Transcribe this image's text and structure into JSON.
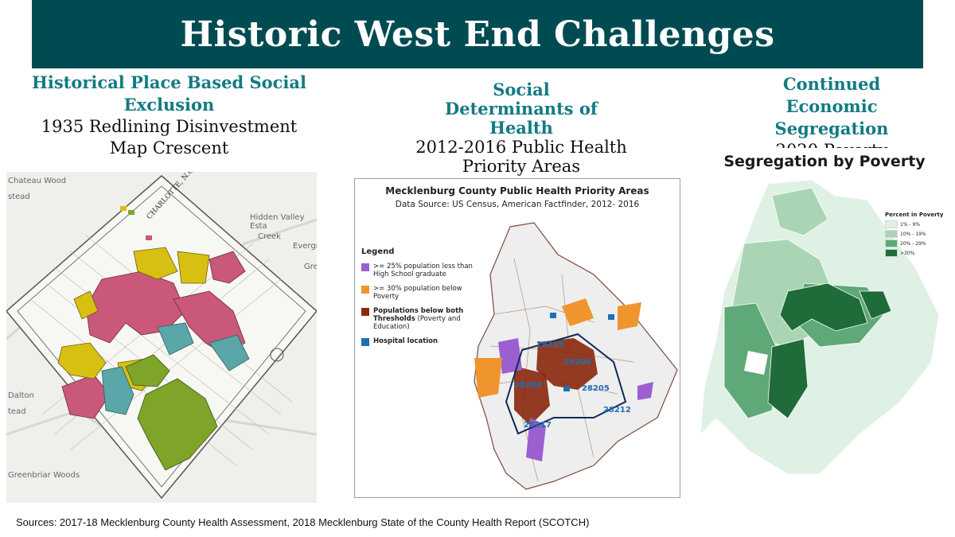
{
  "slide": {
    "title": "Historic West End Challenges",
    "sources": "Sources: 2017-18 Mecklenburg County Health Assessment, 2018 Mecklenburg State of the County Health Report (SCOTCH)"
  },
  "columns": [
    {
      "heading": "Historical Place Based Social Exclusion",
      "subheading": "1935 Redlining Disinvestment Map Crescent"
    },
    {
      "heading": "Social Determinants of Health",
      "subheading": "2012-2016 Public Health Priority Areas"
    },
    {
      "heading": "Continued Economic Segregation",
      "subheading": "2020 Poverty"
    }
  ],
  "redlining_map": {
    "place_labels": [
      "Chateau Wood",
      "stead",
      "Hidden Valley Esta",
      "Creek",
      "Evergr",
      "Gre",
      "Dalton",
      "tead",
      "Greenbriar Woods"
    ],
    "colors": {
      "red": "#c9587a",
      "yellow": "#d8c012",
      "blue": "#5aa6a8",
      "green": "#7ea52a"
    }
  },
  "health_map": {
    "title": "Mecklenburg County Public Health Priority Areas",
    "subtitle": "Data Source: US Census, American Factfinder, 2012- 2016",
    "legend_title": "Legend",
    "legend": [
      {
        "label": ">= 25% population less than High School graduate",
        "color": "#9b5fd0"
      },
      {
        "label": ">= 30% population below Poverty",
        "color": "#f0952e"
      },
      {
        "label_bold": "Populations below both Thresholds",
        "label_rest": " (Poverty and Education)",
        "color": "#8b2a10"
      },
      {
        "label": "Hospital location",
        "color": "#1f6fb2"
      }
    ],
    "zip_labels": [
      "28216",
      "28206",
      "28208",
      "28205",
      "28217",
      "28212"
    ]
  },
  "poverty_map": {
    "title": "Segregation by Poverty",
    "legend_title": "Percent in Poverty",
    "legend": [
      {
        "label": "1% - 9%",
        "color": "#dff0e4"
      },
      {
        "label": "10% - 19%",
        "color": "#a9d5b5"
      },
      {
        "label": "20% - 29%",
        "color": "#5fa878"
      },
      {
        "label": ">30%",
        "color": "#1f6b3a"
      }
    ]
  }
}
